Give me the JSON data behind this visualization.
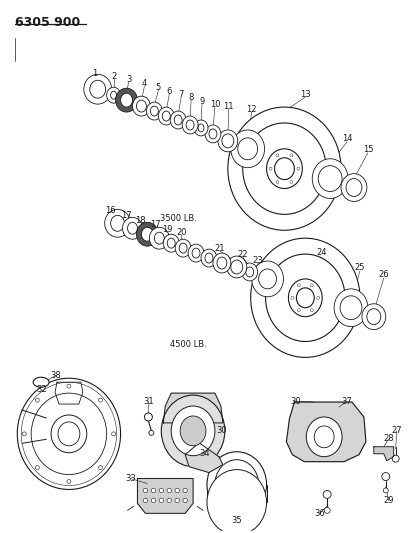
{
  "title": "6305 900",
  "background_color": "#ffffff",
  "line_color": "#1a1a1a",
  "text_color": "#1a1a1a",
  "label_3500": "3500 LB.",
  "label_4500": "4500 LB.",
  "title_fontsize": 9,
  "label_fontsize": 6,
  "number_fontsize": 6,
  "fig_width": 4.08,
  "fig_height": 5.33,
  "dpi": 100
}
